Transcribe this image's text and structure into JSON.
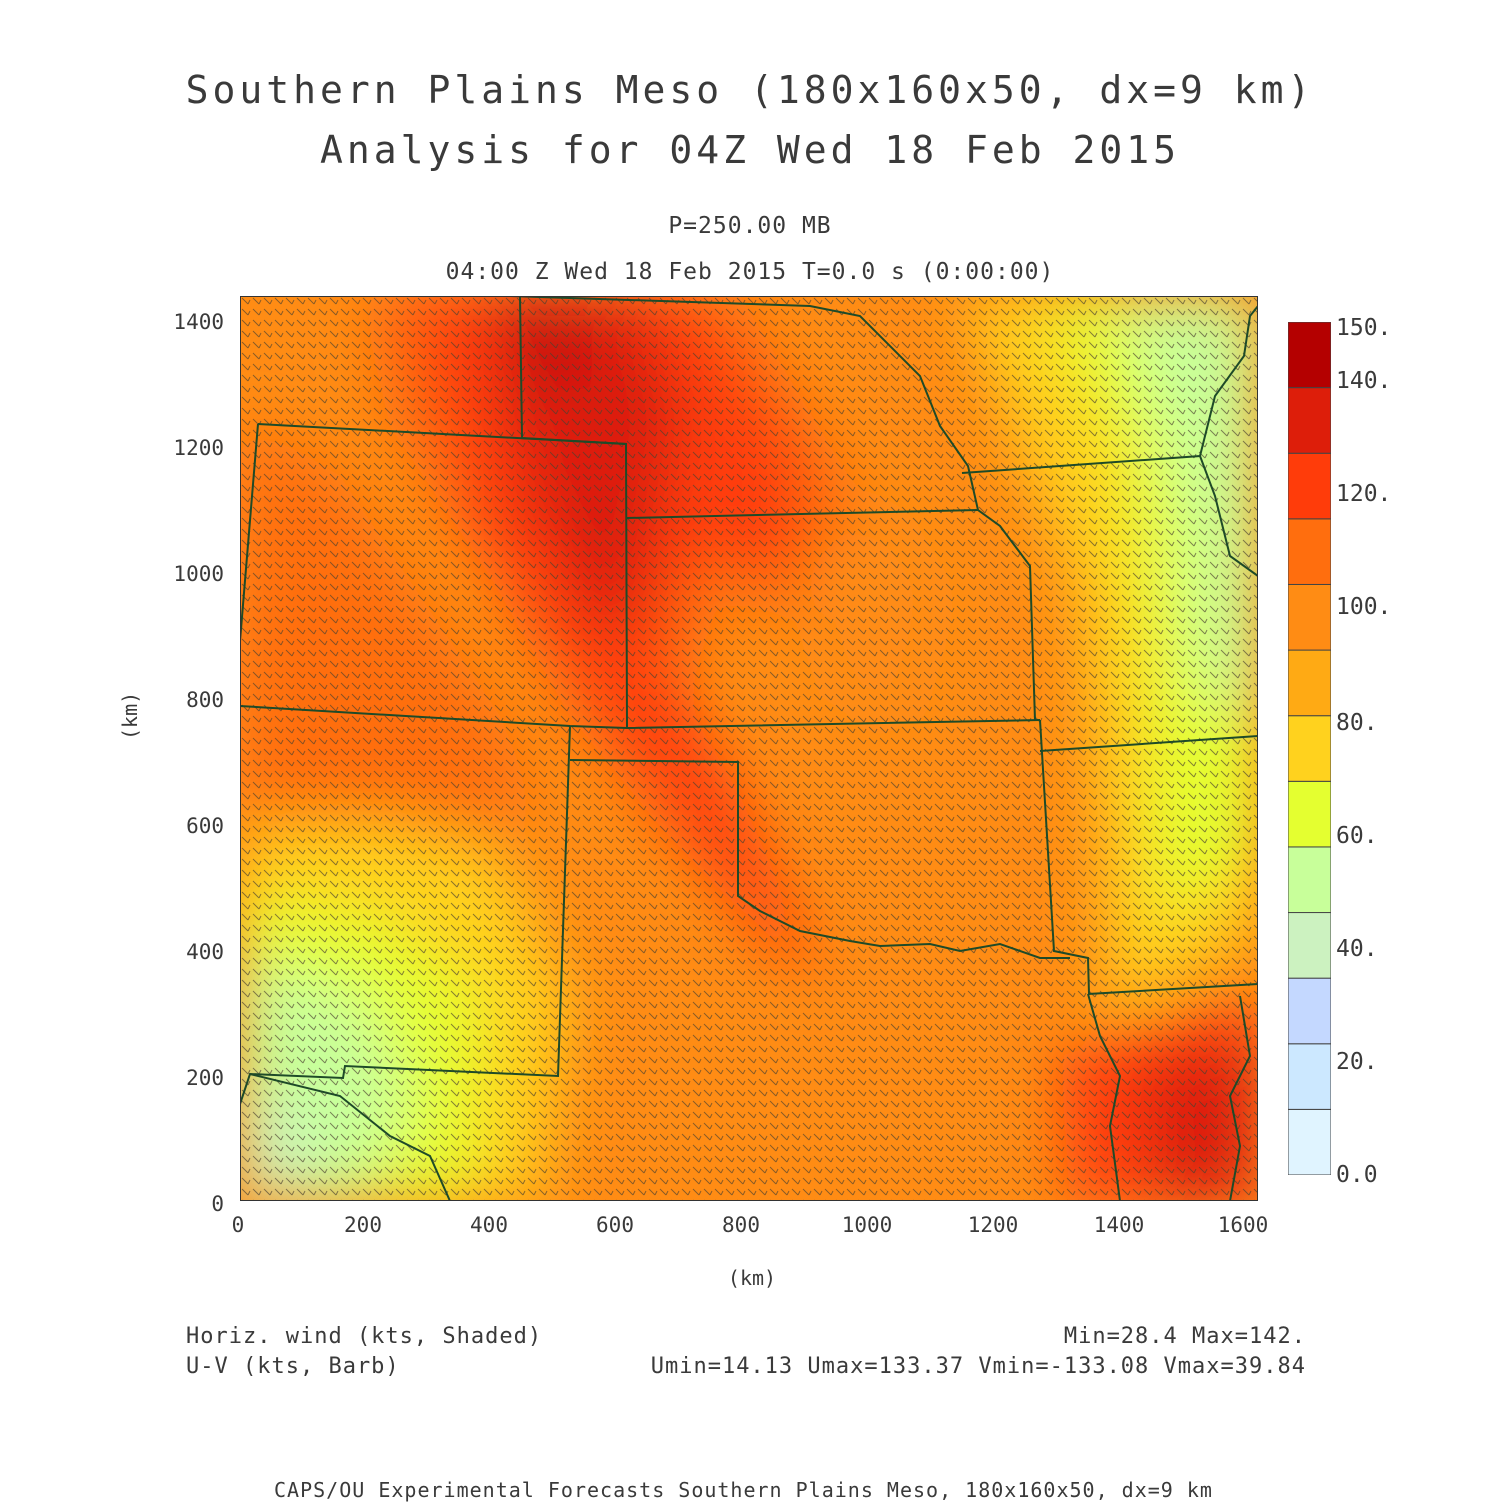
{
  "header": {
    "title_line1": "Southern Plains Meso (180x160x50, dx=9 km)",
    "title_line2": "Analysis for 04Z Wed 18 Feb 2015",
    "level": "P=250.00 MB",
    "valid_time": "04:00 Z Wed 18 Feb 2015    T=0.0 s (0:00:00)"
  },
  "axes": {
    "y_ticks": [
      "1400",
      "1200",
      "1000",
      "800",
      "600",
      "400",
      "200",
      "0"
    ],
    "x_ticks": [
      "0",
      "200",
      "400",
      "600",
      "800",
      "1000",
      "1200",
      "1400",
      "1600"
    ],
    "y_label": "(km)",
    "x_label": "(km)",
    "x_range": [
      0,
      1620
    ],
    "y_range": [
      0,
      1440
    ]
  },
  "colorbar": {
    "labels": [
      "150.",
      "140.",
      "120.",
      "100.",
      "80.",
      "60.",
      "40.",
      "20.",
      "0.0"
    ],
    "colors": [
      "#e0f4ff",
      "#cce8ff",
      "#c4d8ff",
      "#ccf2c0",
      "#c8ff9a",
      "#e4ff30",
      "#ffd21e",
      "#ffaa14",
      "#ff8c14",
      "#ff6e0e",
      "#ff3c0a",
      "#dd1e0a",
      "#b40000"
    ]
  },
  "legend": {
    "shaded_label": "Horiz. wind (kts, Shaded)",
    "barb_label": "U-V (kts, Barb)",
    "minmax": "Min=28.4 Max=142.",
    "uv_minmax": "Umin=14.13 Umax=133.37 Vmin=-133.08 Vmax=39.84"
  },
  "footer": {
    "credit": "CAPS/OU Experimental Forecasts  Southern Plains Meso, 180x160x50, dx=9 km"
  }
}
